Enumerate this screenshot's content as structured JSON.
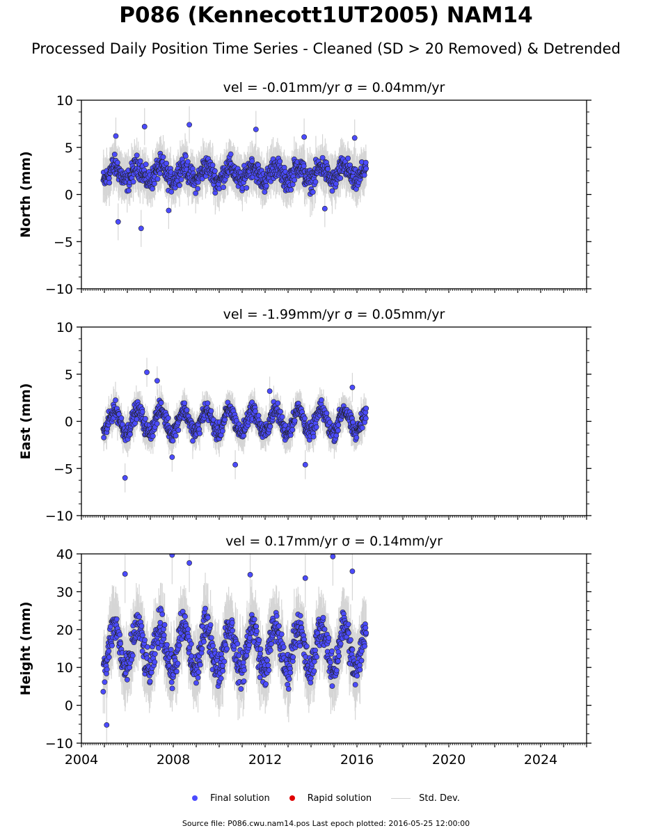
{
  "header": {
    "title": "P086 (Kennecott1UT2005) NAM14",
    "subtitle": "Processed Daily Position Time Series - Cleaned (SD > 20 Removed) & Detrended"
  },
  "legend": {
    "final_label": "Final solution",
    "rapid_label": "Rapid solution",
    "stddev_label": "Std. Dev."
  },
  "footer": {
    "source_text": "Source file: P086.cwu.nam14.pos  Last epoch plotted: 2016-05-25 12:00:00"
  },
  "colors": {
    "final": "#4b4bff",
    "rapid": "#e00000",
    "stddev": "#c8c8c8"
  },
  "chart_data": [
    {
      "type": "scatter",
      "title": "vel = -0.01mm/yr   σ = 0.04mm/yr",
      "ylabel": "North (mm)",
      "xlim": [
        2004,
        2026
      ],
      "ylim": [
        -10,
        10
      ],
      "yticks": [
        -10,
        -5,
        0,
        5,
        10
      ],
      "ytick_labels": [
        "−10",
        "−5",
        "0",
        "5",
        "10"
      ],
      "x_range": [
        2004.95,
        2016.4
      ],
      "series": [
        {
          "name": "Final solution",
          "center": 2.2,
          "spread": 1.4,
          "seasonal_amplitude": 0.8,
          "outliers": [
            [
              2005.5,
              6.2
            ],
            [
              2005.6,
              -2.9
            ],
            [
              2006.6,
              -3.6
            ],
            [
              2006.75,
              7.2
            ],
            [
              2007.8,
              -1.7
            ],
            [
              2008.7,
              7.4
            ],
            [
              2011.6,
              6.9
            ],
            [
              2013.7,
              6.1
            ],
            [
              2014.6,
              -1.5
            ],
            [
              2015.9,
              6.0
            ]
          ]
        }
      ]
    },
    {
      "type": "scatter",
      "title": "vel = -1.99mm/yr   σ = 0.05mm/yr",
      "ylabel": "East (mm)",
      "xlim": [
        2004,
        2026
      ],
      "ylim": [
        -10,
        10
      ],
      "yticks": [
        -10,
        -5,
        0,
        5,
        10
      ],
      "ytick_labels": [
        "−10",
        "−5",
        "0",
        "5",
        "10"
      ],
      "x_range": [
        2004.95,
        2016.4
      ],
      "series": [
        {
          "name": "Final solution",
          "center": 0.0,
          "spread": 1.1,
          "seasonal_amplitude": 1.2,
          "outliers": [
            [
              2005.9,
              -6.0
            ],
            [
              2006.85,
              5.2
            ],
            [
              2007.3,
              4.3
            ],
            [
              2007.95,
              -3.8
            ],
            [
              2010.7,
              -4.6
            ],
            [
              2012.2,
              3.2
            ],
            [
              2013.75,
              -4.6
            ],
            [
              2015.8,
              3.6
            ]
          ]
        }
      ]
    },
    {
      "type": "scatter",
      "title": "vel = 0.17mm/yr   σ = 0.14mm/yr",
      "ylabel": "Height (mm)",
      "xlabel": "",
      "xlim": [
        2004,
        2026
      ],
      "ylim": [
        -10,
        40
      ],
      "yticks": [
        -10,
        0,
        10,
        20,
        30,
        40
      ],
      "ytick_labels": [
        "−10",
        "0",
        "10",
        "20",
        "30",
        "40"
      ],
      "xticks": [
        2004,
        2008,
        2012,
        2016,
        2020,
        2024
      ],
      "xtick_labels": [
        "2004",
        "2008",
        "2012",
        "2016",
        "2020",
        "2024"
      ],
      "x_range": [
        2004.95,
        2016.4
      ],
      "series": [
        {
          "name": "Final solution",
          "center": 15.0,
          "spread": 5.5,
          "seasonal_amplitude": 6.0,
          "outliers": [
            [
              2005.1,
              -5.2
            ],
            [
              2005.9,
              34.7
            ],
            [
              2007.95,
              39.7
            ],
            [
              2008.7,
              37.6
            ],
            [
              2011.35,
              34.5
            ],
            [
              2013.75,
              33.6
            ],
            [
              2014.95,
              39.3
            ],
            [
              2015.8,
              35.4
            ]
          ]
        }
      ]
    }
  ]
}
